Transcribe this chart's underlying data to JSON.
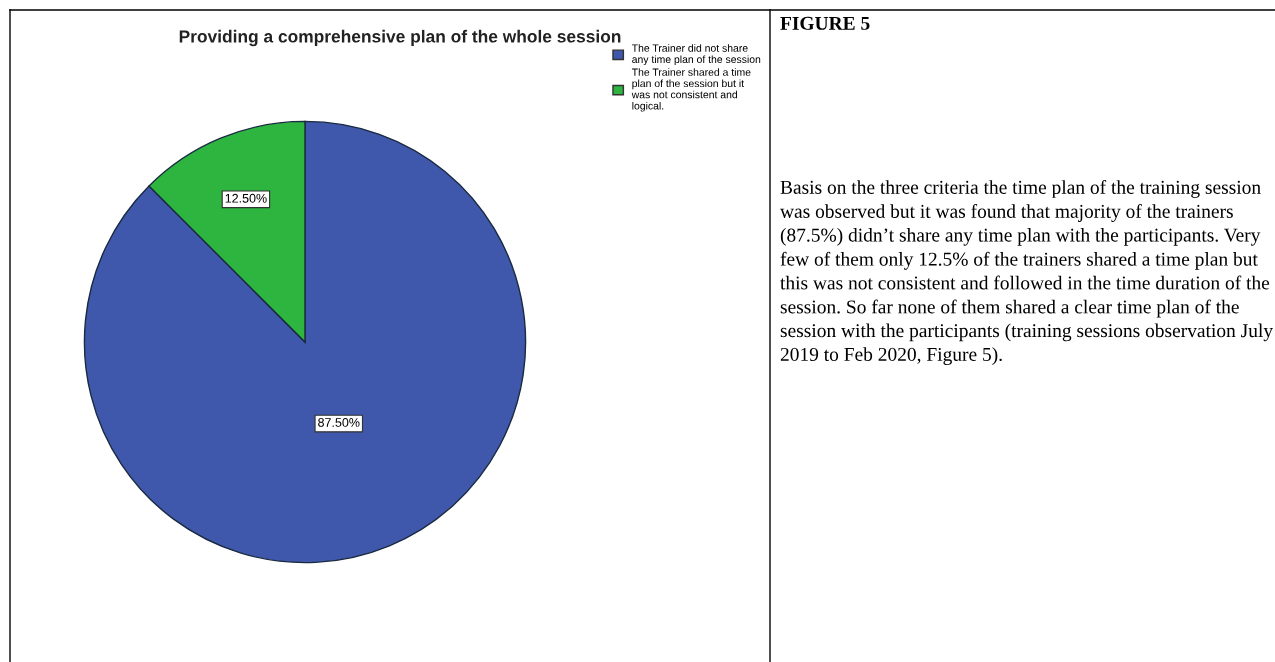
{
  "chart_data": {
    "type": "pie",
    "title": "Providing a comprehensive plan of the whole session",
    "categories": [
      "The Trainer did not share\nany time plan of the session",
      "The Trainer shared a time\nplan of the session but it\nwas not consistent and\nlogical."
    ],
    "values": [
      87.5,
      12.5
    ],
    "colors": [
      "#3f58ab",
      "#2db540"
    ],
    "value_labels": [
      "87.50%",
      "12.50%"
    ],
    "legend": "top right",
    "annotations": [
      "FIGURE 5",
      "Basis on the three criteria the time plan of the training session was observed but it was found that majority of the trainers (87.5%) didn’t share any time plan with the participants. Very few of them only 12.5% of the trainers shared a time plan but this was not consistent and followed in the time duration of the session. So far none of them shared a clear time plan of the session with the participants (training sessions observation July 2019 to Feb 2020, Figure 5)."
    ]
  }
}
